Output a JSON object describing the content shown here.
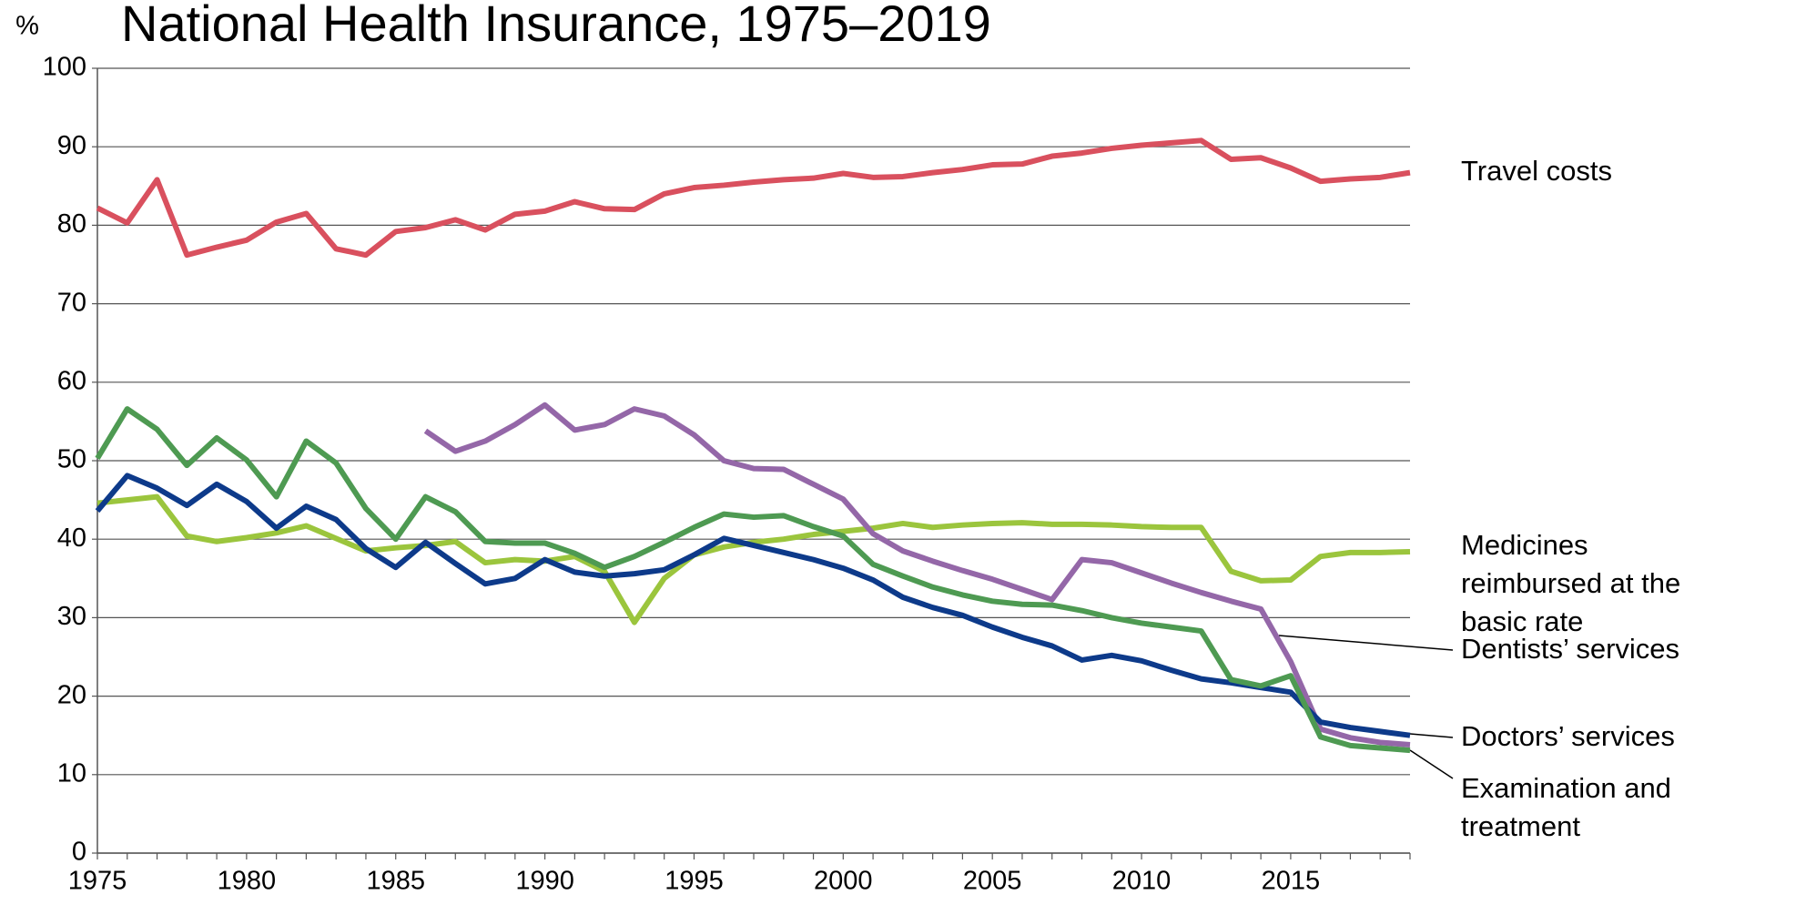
{
  "chart_data": {
    "type": "line",
    "title": "National Health Insurance, 1975–2019",
    "y_label": "%",
    "x": [
      1975,
      1976,
      1977,
      1978,
      1979,
      1980,
      1981,
      1982,
      1983,
      1984,
      1985,
      1986,
      1987,
      1988,
      1989,
      1990,
      1991,
      1992,
      1993,
      1994,
      1995,
      1996,
      1997,
      1998,
      1999,
      2000,
      2001,
      2002,
      2003,
      2004,
      2005,
      2006,
      2007,
      2008,
      2009,
      2010,
      2011,
      2012,
      2013,
      2014,
      2015,
      2016,
      2017,
      2018,
      2019
    ],
    "xlim": [
      1975,
      2019
    ],
    "xticks": [
      1975,
      1980,
      1985,
      1990,
      1995,
      2000,
      2005,
      2010,
      2015
    ],
    "ylim": [
      0,
      100
    ],
    "yticks": [
      0,
      10,
      20,
      30,
      40,
      50,
      60,
      70,
      80,
      90,
      100
    ],
    "grid": true,
    "series": [
      {
        "name": "Travel costs",
        "color": "#d9505e",
        "values": [
          82.2,
          80.3,
          85.8,
          76.2,
          77.2,
          78.1,
          80.4,
          81.5,
          77.0,
          76.2,
          79.2,
          79.7,
          80.7,
          79.4,
          81.4,
          81.8,
          83.0,
          82.1,
          82.0,
          84.0,
          84.8,
          85.1,
          85.5,
          85.8,
          86.0,
          86.6,
          86.1,
          86.2,
          86.7,
          87.1,
          87.7,
          87.8,
          88.8,
          89.2,
          89.8,
          90.2,
          90.5,
          90.8,
          88.4,
          88.6,
          87.3,
          85.6,
          85.9,
          86.1,
          86.7
        ]
      },
      {
        "name": "Medicines reimbursed at the basic rate",
        "color": "#9bc53d",
        "values": [
          44.6,
          45.0,
          45.4,
          40.4,
          39.7,
          40.2,
          40.8,
          41.7,
          40.1,
          38.5,
          38.9,
          39.2,
          39.7,
          37.0,
          37.4,
          37.2,
          37.8,
          35.9,
          29.4,
          35.0,
          38.0,
          39.0,
          39.6,
          40.0,
          40.6,
          41.0,
          41.4,
          42.0,
          41.5,
          41.8,
          42.0,
          42.1,
          41.9,
          41.9,
          41.8,
          41.6,
          41.5,
          41.5,
          35.9,
          34.7,
          34.8,
          37.8,
          38.3,
          38.3,
          38.4
        ]
      },
      {
        "name": "Dentists’ services",
        "color": "#9467a8",
        "values": [
          null,
          null,
          null,
          null,
          null,
          null,
          null,
          null,
          null,
          null,
          null,
          53.8,
          51.2,
          52.5,
          54.6,
          57.1,
          53.9,
          54.6,
          56.6,
          55.7,
          53.3,
          50.0,
          49.0,
          48.9,
          47.0,
          45.1,
          40.7,
          38.5,
          37.2,
          36.0,
          34.9,
          33.6,
          32.3,
          37.4,
          37.0,
          35.7,
          34.4,
          33.2,
          32.1,
          31.1,
          24.4,
          15.8,
          14.7,
          14.1,
          13.8
        ]
      },
      {
        "name": "Doctors’ services",
        "color": "#0d3a8a",
        "values": [
          43.6,
          48.1,
          46.5,
          44.3,
          47.0,
          44.8,
          41.4,
          44.2,
          42.5,
          38.8,
          36.4,
          39.6,
          36.9,
          34.3,
          35.0,
          37.4,
          35.8,
          35.3,
          35.6,
          36.1,
          38.0,
          40.1,
          39.2,
          38.3,
          37.4,
          36.3,
          34.8,
          32.6,
          31.3,
          30.3,
          28.8,
          27.5,
          26.4,
          24.6,
          25.2,
          24.5,
          23.3,
          22.2,
          21.7,
          21.1,
          20.5,
          16.7,
          16.0,
          15.5,
          15.0
        ]
      },
      {
        "name": "Examination and treatment",
        "color": "#4e9a52",
        "values": [
          50.3,
          56.6,
          54.0,
          49.4,
          52.9,
          50.1,
          45.4,
          52.5,
          49.7,
          43.9,
          40.0,
          45.4,
          43.5,
          39.7,
          39.5,
          39.5,
          38.2,
          36.4,
          37.8,
          39.6,
          41.5,
          43.2,
          42.8,
          43.0,
          41.6,
          40.4,
          36.8,
          35.3,
          33.9,
          32.9,
          32.1,
          31.7,
          31.6,
          30.9,
          30.0,
          29.3,
          28.8,
          28.3,
          22.1,
          21.3,
          22.6,
          14.8,
          13.7,
          13.4,
          13.1
        ]
      }
    ]
  }
}
